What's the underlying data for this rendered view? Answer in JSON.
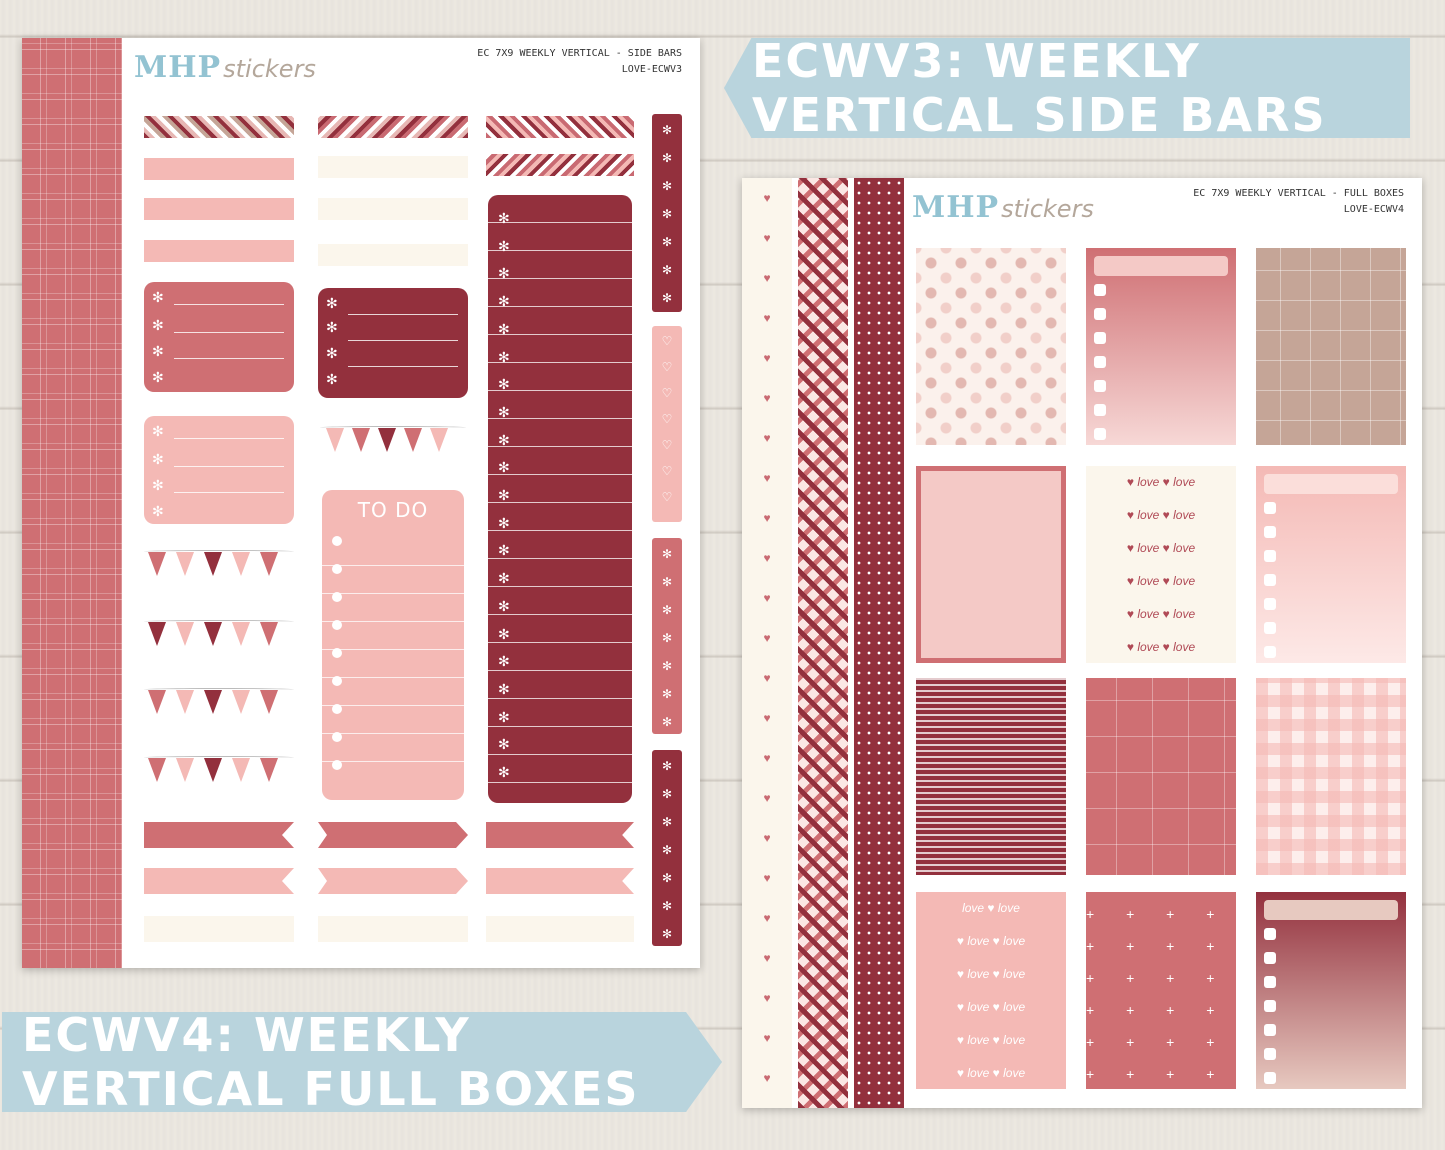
{
  "brand": {
    "name": "MHP",
    "suffix": "stickers"
  },
  "sheet1": {
    "title_line1": "EC 7X9 WEEKLY VERTICAL - SIDE BARS",
    "title_line2": "LOVE-ECWV3",
    "todo_label": "TO DO"
  },
  "sheet2": {
    "title_line1": "EC 7X9 WEEKLY VERTICAL - FULL BOXES",
    "title_line2": "LOVE-ECWV4"
  },
  "banners": {
    "top": "ECWV3: WEEKLY VERTICAL SIDE BARS",
    "bottom": "ECWV4: WEEKLY VERTICAL FULL BOXES"
  },
  "palette": {
    "dusty_rose": "#cf6f73",
    "burgundy": "#93303d",
    "blush": "#f4b9b5",
    "cream": "#fbf6ec",
    "taupe": "#c5a597"
  },
  "icons": [
    "flower-icon",
    "heart-icon",
    "checkbox-icon"
  ]
}
